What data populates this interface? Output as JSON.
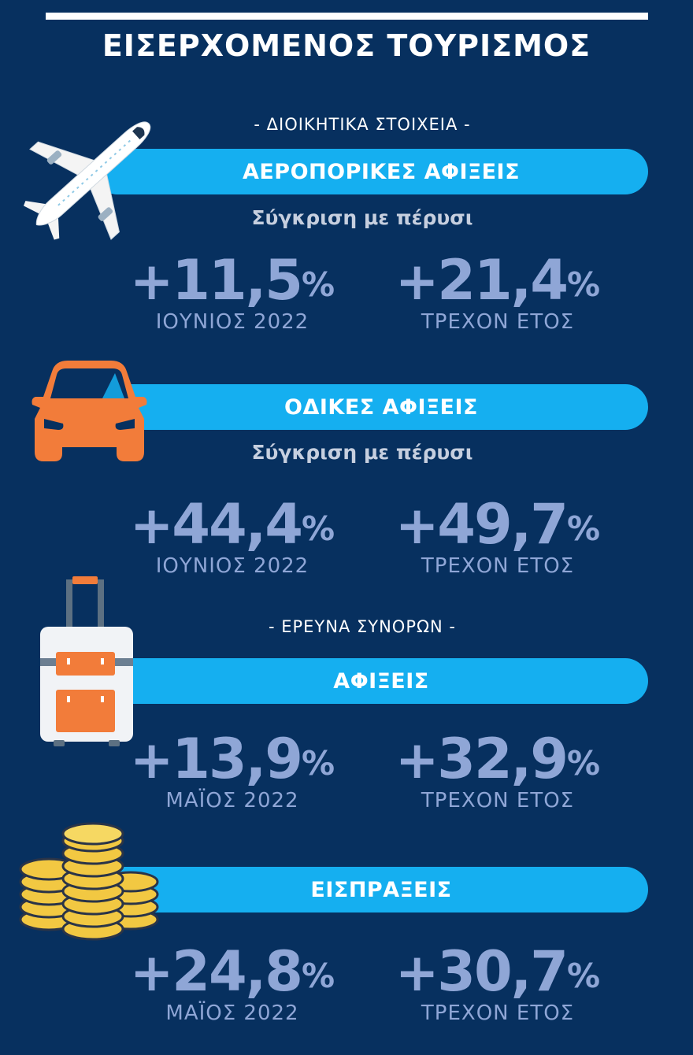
{
  "title": "ΕΙΣΕΡΧΟΜΕΝΟΣ ΤΟΥΡΙΣΜΟΣ",
  "colors": {
    "background": "#07305f",
    "banner": "#15aff0",
    "stat_text": "#8fa6d6",
    "accent_orange": "#f27c3a",
    "coin_gold": "#f2c842"
  },
  "sections": {
    "admin": {
      "label": "- ΔΙΟΙΚΗΤΙΚΑ ΣΤΟΙΧΕΙΑ -",
      "air": {
        "icon": "airplane-icon",
        "banner": "ΑΕΡΟΠΟΡΙΚΕΣ ΑΦΙΞΕΙΣ",
        "comparison": "Σύγκριση με πέρυσι",
        "left": {
          "plus": "+",
          "value": "11,5",
          "percent": "%",
          "label": "ΙΟΥΝΙΟΣ 2022"
        },
        "right": {
          "plus": "+",
          "value": "21,4",
          "percent": "%",
          "label": "ΤΡΕΧΟΝ ΕΤΟΣ"
        }
      },
      "road": {
        "icon": "car-icon",
        "banner": "ΟΔΙΚΕΣ ΑΦΙΞΕΙΣ",
        "comparison": "Σύγκριση με πέρυσι",
        "left": {
          "plus": "+",
          "value": "44,4",
          "percent": "%",
          "label": "ΙΟΥΝΙΟΣ 2022"
        },
        "right": {
          "plus": "+",
          "value": "49,7",
          "percent": "%",
          "label": "ΤΡΕΧΟΝ ΕΤΟΣ"
        }
      }
    },
    "border": {
      "label": "- ΕΡΕΥΝΑ ΣΥΝΟΡΩΝ -",
      "arrivals": {
        "icon": "suitcase-icon",
        "banner": "ΑΦΙΞΕΙΣ",
        "left": {
          "plus": "+",
          "value": "13,9",
          "percent": "%",
          "label": "ΜΑΪΟΣ 2022"
        },
        "right": {
          "plus": "+",
          "value": "32,9",
          "percent": "%",
          "label": "ΤΡΕΧΟΝ ΕΤΟΣ"
        }
      },
      "receipts": {
        "icon": "coins-icon",
        "banner": "ΕΙΣΠΡΑΞΕΙΣ",
        "left": {
          "plus": "+",
          "value": "24,8",
          "percent": "%",
          "label": "ΜΑΪΟΣ 2022"
        },
        "right": {
          "plus": "+",
          "value": "30,7",
          "percent": "%",
          "label": "ΤΡΕΧΟΝ ΕΤΟΣ"
        }
      }
    }
  }
}
